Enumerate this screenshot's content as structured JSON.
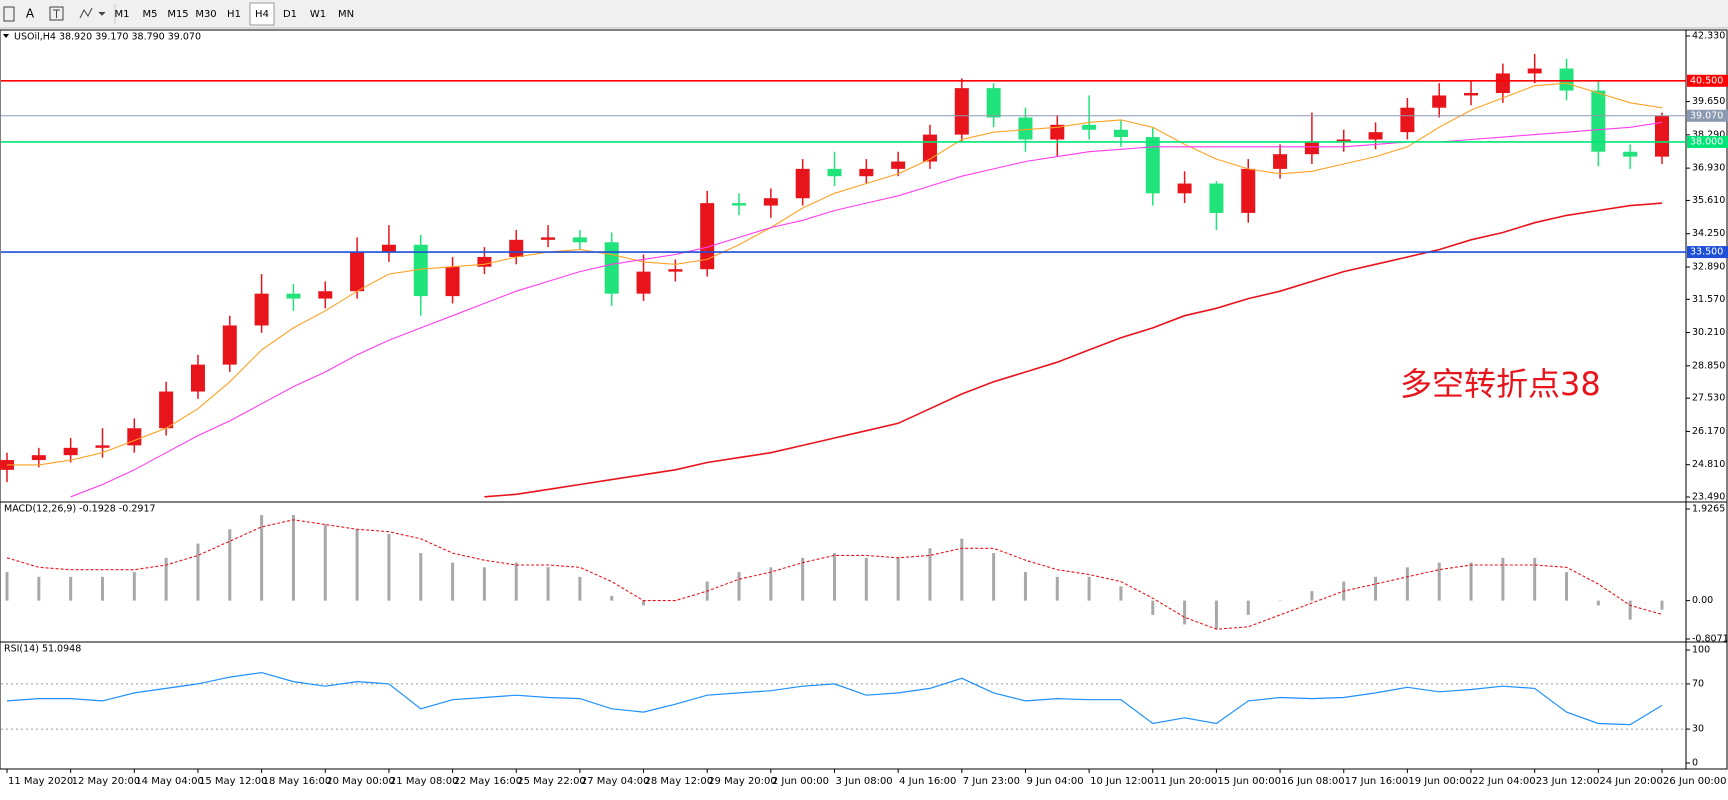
{
  "toolbar": {
    "tools": [
      "A"
    ],
    "timeframes": [
      "M1",
      "M5",
      "M15",
      "M30",
      "H1",
      "H4",
      "D1",
      "W1",
      "MN"
    ],
    "active": "H4"
  },
  "chart_data": [
    {
      "type": "candlestick",
      "title": "USOil,H4  38.920 39.170 38.790 39.070",
      "annotation": "多空转折点38",
      "categories": [
        "11 May 2020",
        null,
        "12 May 20:00",
        null,
        "14 May 04:00",
        null,
        "15 May 12:00",
        null,
        "18 May 16:00",
        null,
        "20 May 00:00",
        null,
        "21 May 08:00",
        null,
        "22 May 16:00",
        null,
        "25 May 22:00",
        null,
        "27 May 04:00",
        null,
        "28 May 12:00",
        null,
        "29 May 20:00",
        null,
        "2 Jun 00:00",
        null,
        "3 Jun 08:00",
        null,
        "4 Jun 16:00",
        null,
        "7 Jun 23:00",
        null,
        "9 Jun 04:00",
        null,
        "10 Jun 12:00",
        null,
        "11 Jun 20:00",
        null,
        "15 Jun 00:00",
        null,
        "16 Jun 08:00",
        null,
        "17 Jun 16:00",
        null,
        "19 Jun 00:00",
        null,
        "22 Jun 04:00",
        null,
        "23 Jun 12:00",
        null,
        "24 Jun 20:00",
        null,
        "26 Jun 00:00"
      ],
      "open": [
        24.6,
        25.0,
        25.2,
        25.5,
        25.6,
        26.3,
        27.8,
        28.9,
        30.5,
        31.8,
        31.6,
        31.9,
        33.5,
        33.8,
        31.7,
        32.9,
        33.3,
        34.0,
        34.1,
        33.9,
        31.8,
        32.7,
        32.8,
        35.5,
        35.4,
        35.7,
        36.9,
        36.6,
        36.9,
        37.2,
        38.3,
        40.2,
        39.0,
        38.1,
        38.7,
        38.5,
        38.2,
        35.9,
        36.3,
        35.1,
        36.9,
        37.5,
        38.0,
        38.1,
        38.4,
        39.4,
        39.9,
        40.0,
        40.8,
        41.0,
        40.1,
        37.6,
        37.4
      ],
      "high": [
        25.3,
        25.5,
        25.9,
        26.3,
        26.7,
        28.2,
        29.3,
        30.9,
        32.6,
        32.2,
        32.3,
        34.1,
        34.6,
        34.2,
        33.3,
        33.7,
        34.4,
        34.6,
        34.4,
        34.3,
        33.4,
        33.2,
        36.0,
        35.9,
        36.1,
        37.3,
        37.6,
        37.3,
        37.6,
        38.7,
        40.6,
        40.4,
        39.4,
        39.1,
        39.9,
        38.9,
        38.6,
        36.8,
        36.4,
        37.3,
        37.9,
        39.2,
        38.5,
        38.8,
        39.8,
        40.4,
        40.5,
        41.2,
        41.6,
        41.4,
        40.5,
        37.9,
        39.2
      ],
      "low": [
        24.1,
        24.7,
        24.9,
        25.1,
        25.3,
        26.0,
        27.5,
        28.6,
        30.2,
        31.1,
        31.2,
        31.6,
        33.1,
        30.9,
        31.4,
        32.6,
        33.0,
        33.7,
        33.6,
        31.3,
        31.5,
        32.3,
        32.5,
        35.0,
        34.9,
        35.4,
        36.2,
        36.3,
        36.6,
        36.9,
        38.0,
        38.6,
        37.6,
        37.4,
        38.1,
        37.8,
        35.4,
        35.5,
        34.4,
        34.7,
        36.5,
        37.1,
        37.6,
        37.7,
        38.1,
        39.0,
        39.5,
        39.6,
        40.4,
        39.7,
        37.0,
        36.9,
        37.1
      ],
      "close": [
        25.0,
        25.2,
        25.5,
        25.6,
        26.3,
        27.8,
        28.9,
        30.5,
        31.8,
        31.6,
        31.9,
        33.5,
        33.8,
        31.7,
        32.9,
        33.3,
        34.0,
        34.1,
        33.9,
        31.8,
        32.7,
        32.8,
        35.5,
        35.4,
        35.7,
        36.9,
        36.6,
        36.9,
        37.2,
        38.3,
        40.2,
        39.0,
        38.1,
        38.7,
        38.5,
        38.2,
        35.9,
        36.3,
        35.1,
        36.9,
        37.5,
        38.0,
        38.1,
        38.4,
        39.4,
        39.9,
        40.0,
        40.8,
        41.0,
        40.1,
        37.6,
        37.4,
        39.07
      ],
      "up_color": "#e8141c",
      "down_color": "#21e37b",
      "lines": [
        {
          "color": "#ffa124",
          "values": [
            24.8,
            24.8,
            25.0,
            25.3,
            25.8,
            26.3,
            27.1,
            28.2,
            29.5,
            30.4,
            31.1,
            31.9,
            32.6,
            32.8,
            32.9,
            33.0,
            33.3,
            33.5,
            33.6,
            33.4,
            33.1,
            33.0,
            33.2,
            33.8,
            34.5,
            35.3,
            35.9,
            36.3,
            36.7,
            37.3,
            38.1,
            38.4,
            38.5,
            38.6,
            38.8,
            38.9,
            38.6,
            37.9,
            37.3,
            36.9,
            36.7,
            36.8,
            37.1,
            37.4,
            37.8,
            38.6,
            39.3,
            39.8,
            40.3,
            40.4,
            40.0,
            39.6,
            39.4
          ]
        },
        {
          "color": "#ff3cf0",
          "values": [
            null,
            null,
            23.5,
            24.0,
            24.6,
            25.3,
            26.0,
            26.6,
            27.3,
            28.0,
            28.6,
            29.3,
            29.9,
            30.4,
            30.9,
            31.4,
            31.9,
            32.3,
            32.7,
            33.0,
            33.2,
            33.4,
            33.7,
            34.1,
            34.5,
            34.8,
            35.2,
            35.5,
            35.8,
            36.2,
            36.6,
            36.9,
            37.2,
            37.4,
            37.6,
            37.7,
            37.8,
            37.8,
            37.8,
            37.8,
            37.8,
            37.8,
            37.8,
            37.9,
            38.0,
            38.0,
            38.1,
            38.2,
            38.3,
            38.4,
            38.5,
            38.6,
            38.8
          ]
        },
        {
          "color": "#e8141c",
          "values": [
            null,
            null,
            null,
            null,
            null,
            null,
            null,
            null,
            null,
            null,
            null,
            null,
            null,
            null,
            null,
            23.5,
            23.6,
            23.8,
            24.0,
            24.2,
            24.4,
            24.6,
            24.9,
            25.1,
            25.3,
            25.6,
            25.9,
            26.2,
            26.5,
            27.1,
            27.7,
            28.2,
            28.6,
            29.0,
            29.5,
            30.0,
            30.4,
            30.9,
            31.2,
            31.6,
            31.9,
            32.3,
            32.7,
            33.0,
            33.3,
            33.6,
            34.0,
            34.3,
            34.7,
            35.0,
            35.2,
            35.4,
            35.5
          ]
        }
      ],
      "hlines": [
        {
          "value": 40.5,
          "label": "40.500",
          "color": "#ff0000",
          "text_color": "#ffffff"
        },
        {
          "value": 39.07,
          "label": "39.070",
          "color": "#8a99b0",
          "text_color": "#ffffff"
        },
        {
          "value": 38.0,
          "label": "38.000",
          "color": "#00e676",
          "text_color": "#ffffff"
        },
        {
          "value": 33.5,
          "label": "33.500",
          "color": "#1f4fd8",
          "text_color": "#ffffff"
        }
      ],
      "ylim": [
        23.49,
        42.33
      ],
      "yticks": [
        {
          "value": 42.33,
          "label": "42.330"
        },
        {
          "value": 39.65,
          "label": "39.650"
        },
        {
          "value": 38.29,
          "label": "38.290"
        },
        {
          "value": 36.93,
          "label": "36.930"
        },
        {
          "value": 35.61,
          "label": "35.610"
        },
        {
          "value": 34.25,
          "label": "34.250"
        },
        {
          "value": 32.89,
          "label": "32.890"
        },
        {
          "value": 31.57,
          "label": "31.570"
        },
        {
          "value": 30.21,
          "label": "30.210"
        },
        {
          "value": 28.85,
          "label": "28.850"
        },
        {
          "value": 27.53,
          "label": "27.530"
        },
        {
          "value": 26.17,
          "label": "26.170"
        },
        {
          "value": 24.81,
          "label": "24.810"
        },
        {
          "value": 23.49,
          "label": "23.490"
        }
      ]
    },
    {
      "type": "macd",
      "title": "MACD(12,26,9) -0.1928 -0.2917",
      "values": [
        0.6,
        0.5,
        0.5,
        0.5,
        0.6,
        0.9,
        1.2,
        1.5,
        1.8,
        1.8,
        1.6,
        1.5,
        1.4,
        1.0,
        0.8,
        0.7,
        0.8,
        0.7,
        0.5,
        0.1,
        -0.1,
        0.0,
        0.4,
        0.6,
        0.7,
        0.9,
        1.0,
        0.9,
        0.9,
        1.1,
        1.3,
        1.0,
        0.6,
        0.5,
        0.5,
        0.3,
        -0.3,
        -0.5,
        -0.6,
        -0.3,
        0.0,
        0.2,
        0.4,
        0.5,
        0.7,
        0.8,
        0.8,
        0.9,
        0.9,
        0.6,
        -0.1,
        -0.4,
        -0.19
      ],
      "color": "#a8a8a8",
      "signal": [
        0.9,
        0.7,
        0.65,
        0.65,
        0.65,
        0.75,
        0.95,
        1.25,
        1.55,
        1.7,
        1.6,
        1.5,
        1.45,
        1.3,
        1.0,
        0.85,
        0.75,
        0.75,
        0.7,
        0.4,
        0.0,
        0.0,
        0.2,
        0.45,
        0.6,
        0.8,
        0.95,
        0.95,
        0.9,
        0.95,
        1.1,
        1.1,
        0.85,
        0.65,
        0.55,
        0.4,
        0.05,
        -0.35,
        -0.6,
        -0.55,
        -0.3,
        -0.05,
        0.2,
        0.35,
        0.5,
        0.65,
        0.75,
        0.75,
        0.75,
        0.7,
        0.35,
        -0.1,
        -0.29
      ],
      "signal_color": "#e8141c",
      "ylim": [
        -0.8071,
        1.9265
      ],
      "yticks": [
        1.9265,
        {
          "value": 0,
          "label": "0.00"
        },
        -0.8071
      ]
    },
    {
      "type": "line",
      "title": "RSI(14) 51.0948",
      "values": [
        55,
        57,
        57,
        55,
        62,
        66,
        70,
        76,
        80,
        72,
        68,
        72,
        70,
        48,
        56,
        58,
        60,
        58,
        57,
        48,
        45,
        52,
        60,
        62,
        64,
        68,
        70,
        60,
        62,
        66,
        75,
        62,
        55,
        57,
        56,
        56,
        35,
        40,
        35,
        55,
        58,
        57,
        58,
        62,
        67,
        63,
        65,
        68,
        66,
        45,
        35,
        34,
        51
      ],
      "color": "#1e90ff",
      "levels": [
        70,
        30
      ],
      "ylim": [
        0,
        100
      ],
      "yticks": [
        100,
        70,
        30,
        0
      ]
    }
  ]
}
